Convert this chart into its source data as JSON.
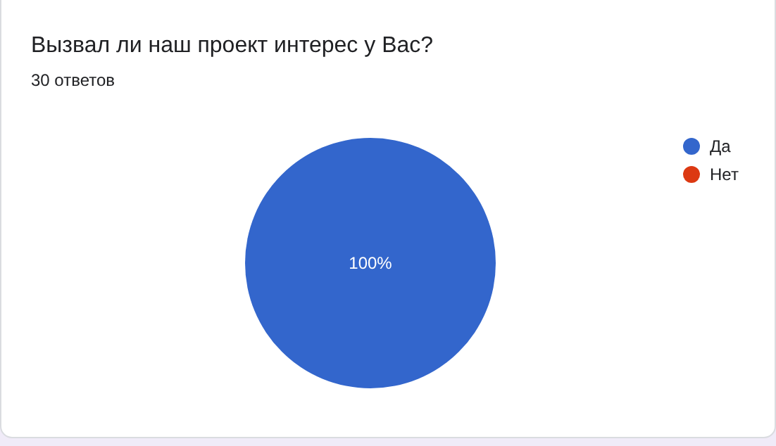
{
  "chart_data": {
    "type": "pie",
    "title": "Вызвал ли наш проект интерес у Вас?",
    "subtitle": "30 ответов",
    "categories": [
      "Да",
      "Нет"
    ],
    "values": [
      100,
      0
    ],
    "colors": [
      "#3366cc",
      "#dc3912"
    ],
    "value_labels": [
      "100%",
      null
    ],
    "legend": "right"
  }
}
